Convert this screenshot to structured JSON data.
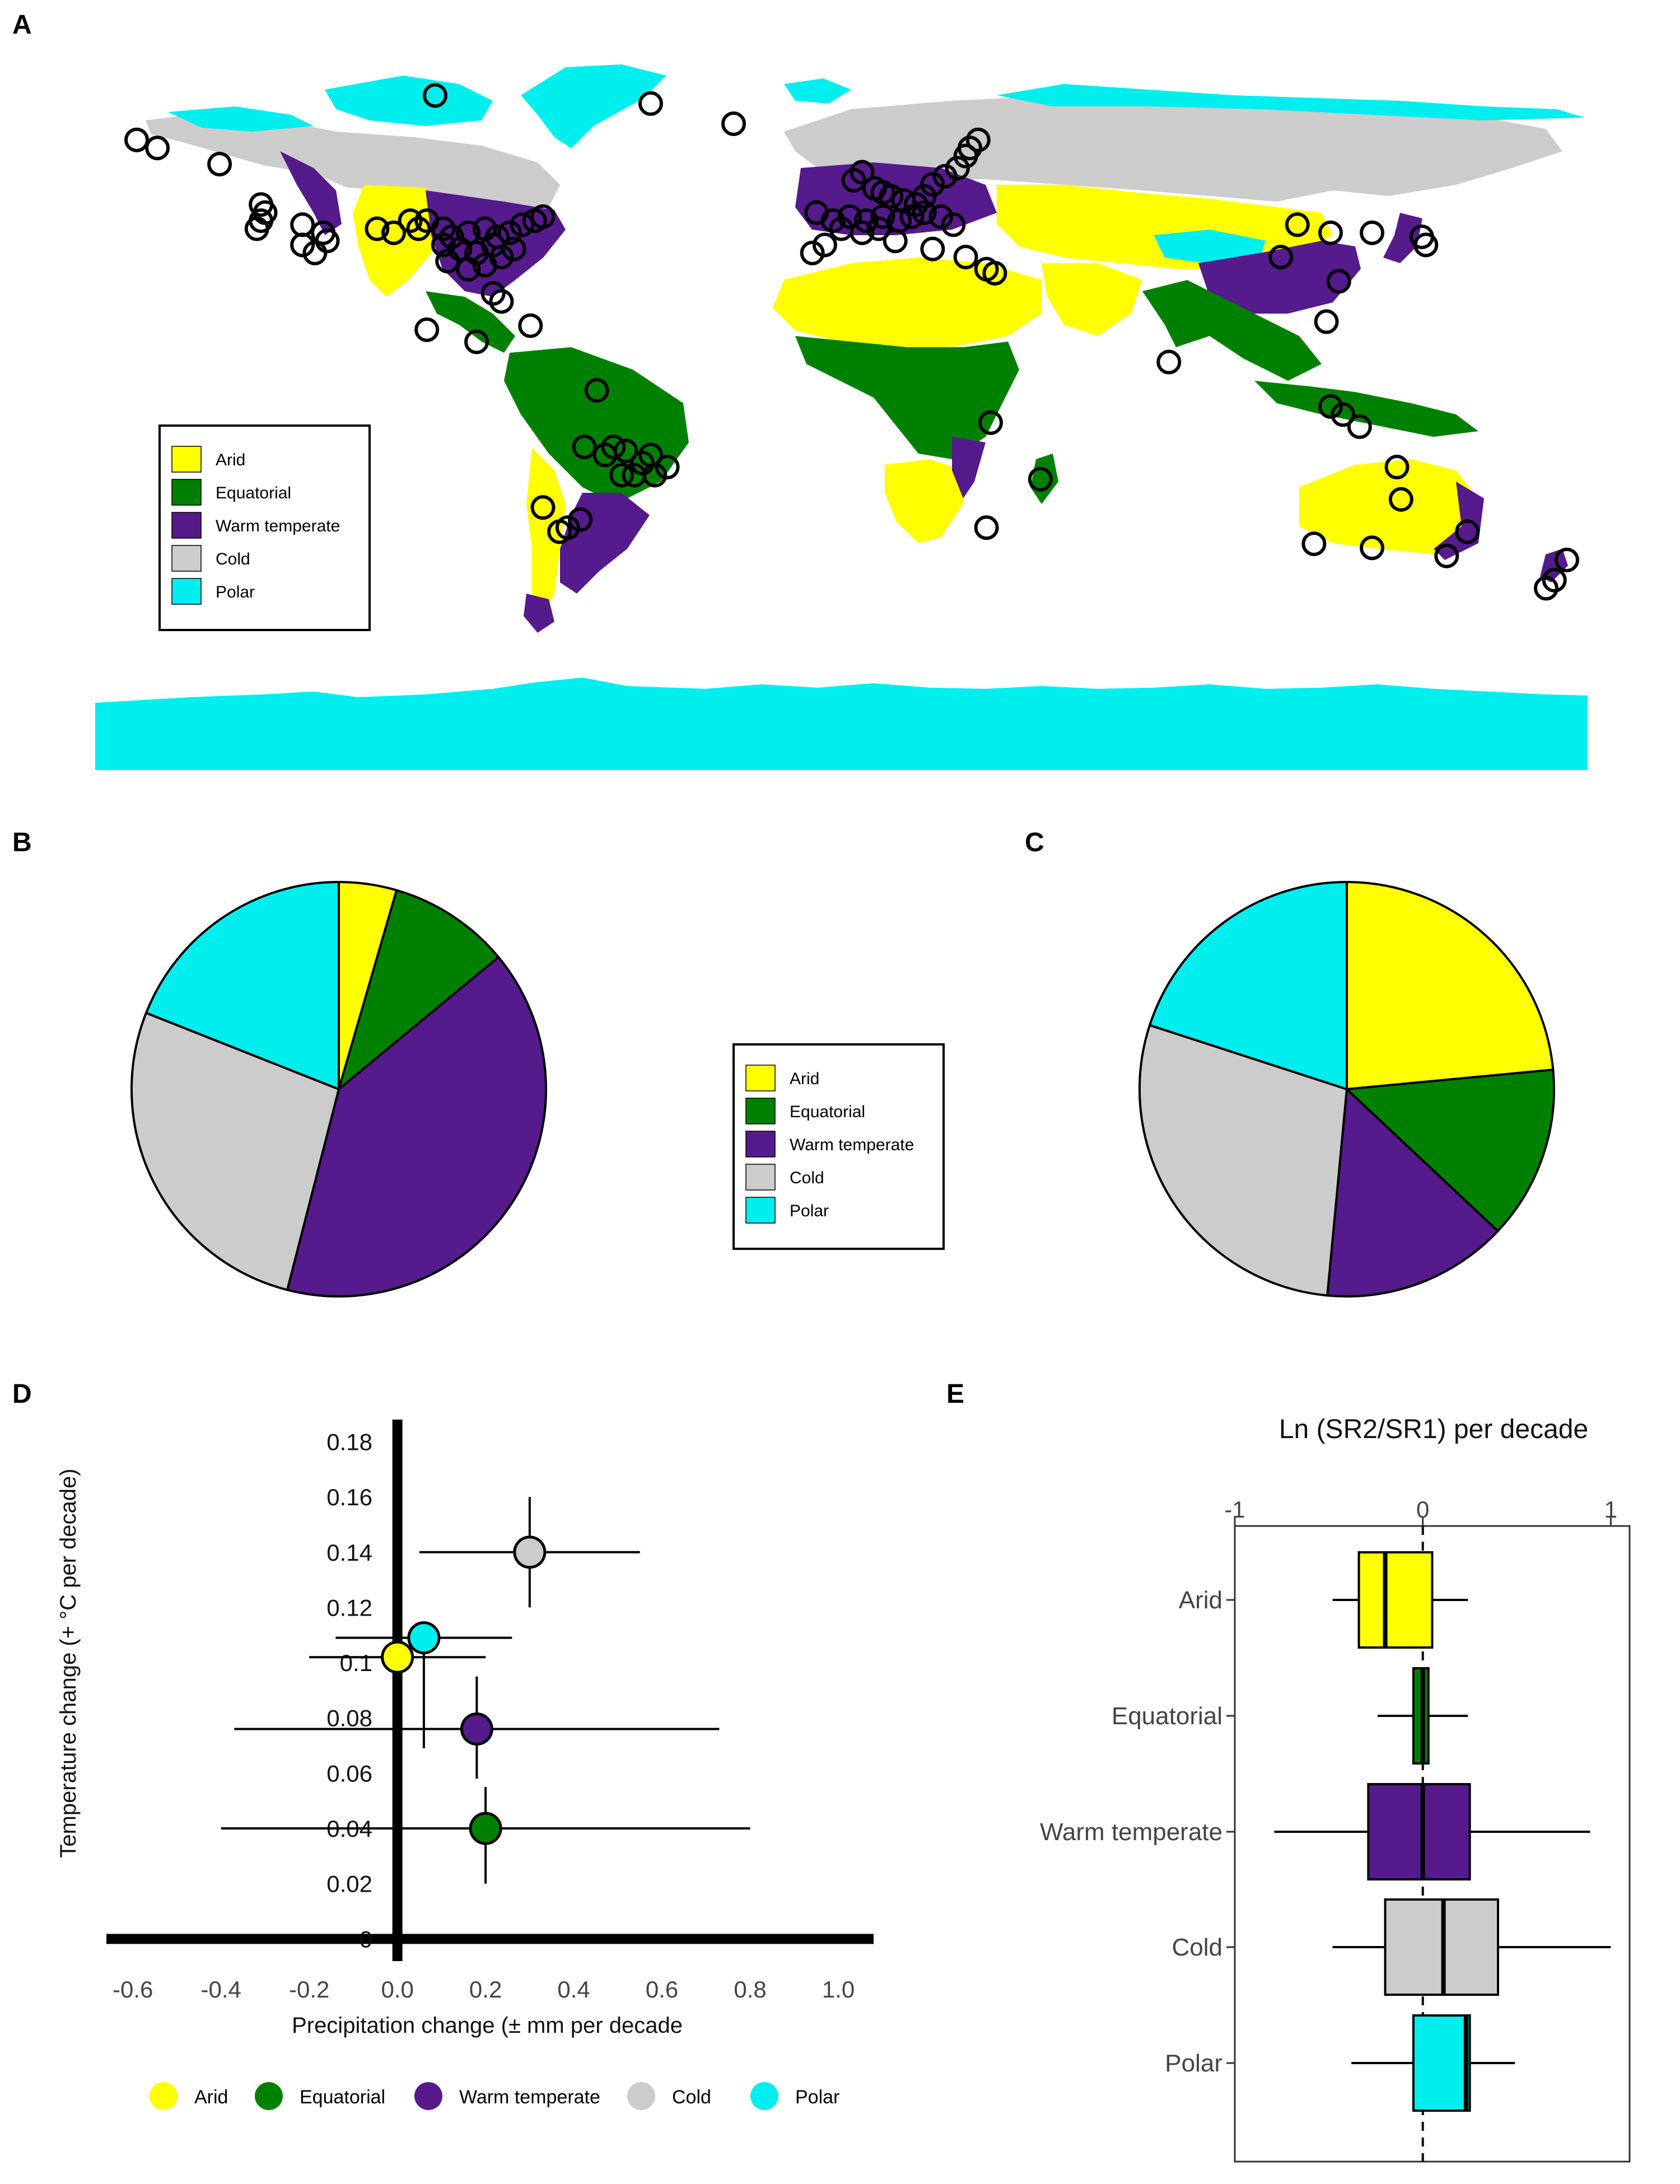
{
  "panel_labels": {
    "A": "A",
    "B": "B",
    "C": "C",
    "D": "D",
    "E": "E"
  },
  "colors": {
    "Arid": "#FFFF00",
    "Equatorial": "#008000",
    "Warm temperate": "#551A8B",
    "Cold": "#CCCCCC",
    "Polar": "#00EEEE",
    "ocean": "#FFFFFF"
  },
  "legend": {
    "entries": [
      "Arid",
      "Equatorial",
      "Warm temperate",
      "Cold",
      "Polar"
    ]
  },
  "chart_data": [
    {
      "panel": "A",
      "type": "map",
      "legend_placement": "bottom-left",
      "categories": [
        "Arid",
        "Equatorial",
        "Warm temperate",
        "Cold",
        "Polar"
      ],
      "site_markers": "open black circles",
      "sites": [
        {
          "lon": -170,
          "lat": 66
        },
        {
          "lon": -165,
          "lat": 64
        },
        {
          "lon": -150,
          "lat": 60
        },
        {
          "lon": -98,
          "lat": 77
        },
        {
          "lon": -140,
          "lat": 50
        },
        {
          "lon": -139,
          "lat": 48
        },
        {
          "lon": -140,
          "lat": 46
        },
        {
          "lon": -141,
          "lat": 44
        },
        {
          "lon": -130,
          "lat": 45
        },
        {
          "lon": -125,
          "lat": 43
        },
        {
          "lon": -124,
          "lat": 41
        },
        {
          "lon": -130,
          "lat": 40
        },
        {
          "lon": -127,
          "lat": 38
        },
        {
          "lon": -112,
          "lat": 44
        },
        {
          "lon": -108,
          "lat": 43
        },
        {
          "lon": -104,
          "lat": 46
        },
        {
          "lon": -102,
          "lat": 44
        },
        {
          "lon": -100,
          "lat": 46
        },
        {
          "lon": -96,
          "lat": 44
        },
        {
          "lon": -94,
          "lat": 42
        },
        {
          "lon": -90,
          "lat": 43
        },
        {
          "lon": -86,
          "lat": 44
        },
        {
          "lon": -83,
          "lat": 42
        },
        {
          "lon": -80,
          "lat": 43
        },
        {
          "lon": -77,
          "lat": 45
        },
        {
          "lon": -74,
          "lat": 46
        },
        {
          "lon": -72,
          "lat": 47
        },
        {
          "lon": -96,
          "lat": 40
        },
        {
          "lon": -92,
          "lat": 39
        },
        {
          "lon": -88,
          "lat": 38
        },
        {
          "lon": -84,
          "lat": 40
        },
        {
          "lon": -82,
          "lat": 37
        },
        {
          "lon": -79,
          "lat": 39
        },
        {
          "lon": -86,
          "lat": 35
        },
        {
          "lon": -90,
          "lat": 34
        },
        {
          "lon": -95,
          "lat": 36
        },
        {
          "lon": -84,
          "lat": 28
        },
        {
          "lon": -82,
          "lat": 26
        },
        {
          "lon": -100,
          "lat": 19
        },
        {
          "lon": -88,
          "lat": 16
        },
        {
          "lon": -75,
          "lat": 20
        },
        {
          "lon": -59,
          "lat": 4
        },
        {
          "lon": -62,
          "lat": -10
        },
        {
          "lon": -57,
          "lat": -12
        },
        {
          "lon": -55,
          "lat": -10
        },
        {
          "lon": -52,
          "lat": -11
        },
        {
          "lon": -48,
          "lat": -14
        },
        {
          "lon": -46,
          "lat": -12
        },
        {
          "lon": -53,
          "lat": -17
        },
        {
          "lon": -50,
          "lat": -17
        },
        {
          "lon": -45,
          "lat": -17
        },
        {
          "lon": -42,
          "lat": -15
        },
        {
          "lon": -72,
          "lat": -25
        },
        {
          "lon": -63,
          "lat": -28
        },
        {
          "lon": -66,
          "lat": -30
        },
        {
          "lon": -68,
          "lat": -31
        },
        {
          "lon": -46,
          "lat": 75
        },
        {
          "lon": -26,
          "lat": 70
        },
        {
          "lon": 5,
          "lat": 58
        },
        {
          "lon": 3,
          "lat": 56
        },
        {
          "lon": 8,
          "lat": 54
        },
        {
          "lon": 10,
          "lat": 53
        },
        {
          "lon": 12,
          "lat": 52
        },
        {
          "lon": 15,
          "lat": 51
        },
        {
          "lon": 18,
          "lat": 50
        },
        {
          "lon": 20,
          "lat": 52
        },
        {
          "lon": 22,
          "lat": 55
        },
        {
          "lon": 25,
          "lat": 57
        },
        {
          "lon": 28,
          "lat": 59
        },
        {
          "lon": 30,
          "lat": 62
        },
        {
          "lon": 31,
          "lat": 64
        },
        {
          "lon": 33,
          "lat": 66
        },
        {
          "lon": -6,
          "lat": 48
        },
        {
          "lon": -2,
          "lat": 46
        },
        {
          "lon": 2,
          "lat": 47
        },
        {
          "lon": 6,
          "lat": 46
        },
        {
          "lon": 10,
          "lat": 47
        },
        {
          "lon": 14,
          "lat": 46
        },
        {
          "lon": 17,
          "lat": 47
        },
        {
          "lon": 20,
          "lat": 48
        },
        {
          "lon": 24,
          "lat": 47
        },
        {
          "lon": 27,
          "lat": 45
        },
        {
          "lon": 0,
          "lat": 44
        },
        {
          "lon": 5,
          "lat": 43
        },
        {
          "lon": 9,
          "lat": 44
        },
        {
          "lon": -4,
          "lat": 40
        },
        {
          "lon": 13,
          "lat": 41
        },
        {
          "lon": -7,
          "lat": 38
        },
        {
          "lon": 22,
          "lat": 39
        },
        {
          "lon": 30,
          "lat": 37
        },
        {
          "lon": 35,
          "lat": 34
        },
        {
          "lon": 37,
          "lat": 33
        },
        {
          "lon": 36,
          "lat": -4
        },
        {
          "lon": 35,
          "lat": -30
        },
        {
          "lon": 48,
          "lat": -18
        },
        {
          "lon": 79,
          "lat": 11
        },
        {
          "lon": 110,
          "lat": 45
        },
        {
          "lon": 118,
          "lat": 43
        },
        {
          "lon": 128,
          "lat": 43
        },
        {
          "lon": 140,
          "lat": 42
        },
        {
          "lon": 141,
          "lat": 40
        },
        {
          "lon": 106,
          "lat": 37
        },
        {
          "lon": 120,
          "lat": 31
        },
        {
          "lon": 117,
          "lat": 21
        },
        {
          "lon": 118,
          "lat": 0
        },
        {
          "lon": 121,
          "lat": -2
        },
        {
          "lon": 125,
          "lat": -5
        },
        {
          "lon": 134,
          "lat": -15
        },
        {
          "lon": 135,
          "lat": -23
        },
        {
          "lon": 114,
          "lat": -34
        },
        {
          "lon": 128,
          "lat": -35
        },
        {
          "lon": 151,
          "lat": -31
        },
        {
          "lon": 146,
          "lat": -37
        },
        {
          "lon": 175,
          "lat": -38
        },
        {
          "lon": 172,
          "lat": -43
        },
        {
          "lon": 170,
          "lat": -45
        }
      ]
    },
    {
      "panel": "B",
      "type": "pie",
      "slices": [
        {
          "name": "Arid",
          "value": 4.5
        },
        {
          "name": "Equatorial",
          "value": 9.5
        },
        {
          "name": "Warm temperate",
          "value": 40
        },
        {
          "name": "Cold",
          "value": 27
        },
        {
          "name": "Polar",
          "value": 19
        }
      ],
      "order": "clockwise from 12 o'clock"
    },
    {
      "panel": "C",
      "type": "pie",
      "slices": [
        {
          "name": "Arid",
          "value": 23.5
        },
        {
          "name": "Equatorial",
          "value": 13.5
        },
        {
          "name": "Warm temperate",
          "value": 14.5
        },
        {
          "name": "Cold",
          "value": 28.5
        },
        {
          "name": "Polar",
          "value": 20
        }
      ],
      "order": "clockwise from 12 o'clock"
    },
    {
      "panel": "D",
      "type": "scatter",
      "xlabel": "Precipitation change (± mm per decade",
      "ylabel": "Temperature change (+ °C per decade)",
      "xlim": [
        -0.66,
        1.08
      ],
      "ylim": [
        -0.005,
        0.188
      ],
      "xticks": [
        "-0.6",
        "-0.4",
        "-0.2",
        "0.0",
        "0.2",
        "0.4",
        "0.6",
        "0.8",
        "1.0"
      ],
      "yticks": [
        "0",
        "0.02",
        "0.04",
        "0.06",
        "0.08",
        "0.1",
        "0.12",
        "0.14",
        "0.16",
        "0.18"
      ],
      "legend_placement": "bottom",
      "points": [
        {
          "name": "Arid",
          "x": 0.0,
          "y": 0.102,
          "x_lo": -0.2,
          "x_hi": 0.2,
          "y_lo": 0.102,
          "y_hi": 0.102
        },
        {
          "name": "Equatorial",
          "x": 0.2,
          "y": 0.04,
          "x_lo": -0.4,
          "x_hi": 0.8,
          "y_lo": 0.02,
          "y_hi": 0.055
        },
        {
          "name": "Warm temperate",
          "x": 0.18,
          "y": 0.076,
          "x_lo": -0.37,
          "x_hi": 0.73,
          "y_lo": 0.058,
          "y_hi": 0.095
        },
        {
          "name": "Cold",
          "x": 0.3,
          "y": 0.14,
          "x_lo": 0.05,
          "x_hi": 0.55,
          "y_lo": 0.12,
          "y_hi": 0.16
        },
        {
          "name": "Polar",
          "x": 0.06,
          "y": 0.109,
          "x_lo": -0.14,
          "x_hi": 0.26,
          "y_lo": 0.069,
          "y_hi": 0.109
        }
      ]
    },
    {
      "panel": "E",
      "type": "box",
      "title": "Ln (SR2/SR1) per decade",
      "xlim": [
        -1.0,
        1.1
      ],
      "xticks": [
        "-1",
        "0",
        "1"
      ],
      "reference_line": 0,
      "boxes": [
        {
          "name": "Arid",
          "whisker_lo": -0.48,
          "q1": -0.34,
          "median": -0.2,
          "q3": 0.05,
          "whisker_hi": 0.24
        },
        {
          "name": "Equatorial",
          "whisker_lo": -0.24,
          "q1": -0.05,
          "median": 0.0,
          "q3": 0.03,
          "whisker_hi": 0.24
        },
        {
          "name": "Warm temperate",
          "whisker_lo": -0.79,
          "q1": -0.29,
          "median": 0.0,
          "q3": 0.25,
          "whisker_hi": 0.89
        },
        {
          "name": "Cold",
          "whisker_lo": -0.48,
          "q1": -0.2,
          "median": 0.11,
          "q3": 0.4,
          "whisker_hi": 1.0
        },
        {
          "name": "Polar",
          "whisker_lo": -0.38,
          "q1": -0.05,
          "median": 0.23,
          "q3": 0.25,
          "whisker_hi": 0.49
        }
      ]
    }
  ]
}
